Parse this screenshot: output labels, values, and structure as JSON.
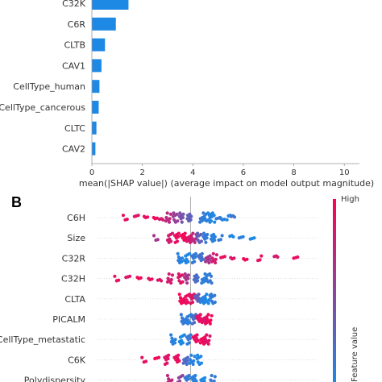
{
  "panel_b_label": "B",
  "chart_data": [
    {
      "type": "bar",
      "orientation": "horizontal",
      "categories": [
        "C32K",
        "C6R",
        "CLTB",
        "CAV1",
        "CellType_human",
        "CellType_cancerous",
        "CLTC",
        "CAV2"
      ],
      "values": [
        1.45,
        0.95,
        0.52,
        0.38,
        0.3,
        0.27,
        0.18,
        0.14
      ],
      "xlabel": "mean(|SHAP value|) (average impact on model output magnitude)",
      "xlim": [
        0,
        10.6
      ],
      "xticks": [
        "0",
        "2",
        "4",
        "6",
        "8",
        "10"
      ],
      "xtick_values": [
        0,
        2,
        4,
        6,
        8,
        10
      ],
      "bar_color": "#1e88e5",
      "grid": false
    },
    {
      "type": "scatter",
      "subtype": "beeswarm",
      "features": [
        "C6H",
        "Size",
        "C32R",
        "C32H",
        "CLTA",
        "PICALM",
        "CellType_metastatic",
        "C6K",
        "Polydispersity"
      ],
      "colorbar": {
        "high_label": "High",
        "title": "Feature value",
        "low_color": "#1e88e5",
        "high_color": "#ff0052"
      },
      "points": [
        {
          "feature": "C6H",
          "values": [
            -3.8,
            -3.2,
            -2.6,
            -2.1,
            -1.7,
            -1.3,
            -0.9,
            -0.5,
            -0.1,
            0.7,
            1.0,
            1.3,
            1.6,
            1.9,
            2.2,
            2.5
          ],
          "colors": [
            0.9,
            0.85,
            0.9,
            0.95,
            0.8,
            0.7,
            0.55,
            0.4,
            0.3,
            0.1,
            0.05,
            0.0,
            0.1,
            0.05,
            0.0,
            0.15
          ]
        },
        {
          "feature": "Size",
          "values": [
            -2.0,
            -1.2,
            -0.8,
            -0.4,
            -0.1,
            0.2,
            0.5,
            0.9,
            1.3,
            1.8,
            2.4,
            3.0,
            3.6
          ],
          "colors": [
            0.6,
            0.8,
            0.9,
            0.95,
            0.85,
            0.7,
            0.3,
            0.1,
            0.05,
            0.1,
            0.0,
            0.05,
            0.0
          ]
        },
        {
          "feature": "C32R",
          "values": [
            -0.6,
            -0.2,
            0.2,
            0.6,
            1.0,
            1.4,
            1.9,
            2.5,
            3.2,
            4.1,
            5.0,
            6.2
          ],
          "colors": [
            0.05,
            0.0,
            0.1,
            0.15,
            0.6,
            0.8,
            0.9,
            0.85,
            0.95,
            0.9,
            0.8,
            0.9
          ]
        },
        {
          "feature": "C32H",
          "values": [
            -4.3,
            -3.7,
            -3.0,
            -2.4,
            -1.8,
            -1.2,
            -0.6,
            -0.2,
            0.3,
            0.8,
            1.1
          ],
          "colors": [
            0.9,
            0.85,
            0.95,
            0.9,
            0.85,
            0.8,
            0.85,
            0.6,
            0.2,
            0.05,
            0.1
          ]
        },
        {
          "feature": "CLTA",
          "values": [
            -0.5,
            -0.2,
            0.1,
            0.4,
            0.7,
            1.0,
            1.3
          ],
          "colors": [
            0.95,
            0.9,
            0.85,
            0.3,
            0.05,
            0.0,
            0.1
          ]
        },
        {
          "feature": "PICALM",
          "values": [
            -0.4,
            -0.1,
            0.2,
            0.5,
            0.8,
            1.1
          ],
          "colors": [
            0.1,
            0.05,
            0.2,
            0.9,
            0.85,
            0.95
          ]
        },
        {
          "feature": "CellType_metastatic",
          "values": [
            -1.0,
            -0.5,
            -0.1,
            0.3,
            0.7,
            1.0
          ],
          "colors": [
            0.05,
            0.0,
            0.1,
            0.9,
            0.95,
            0.85
          ]
        },
        {
          "feature": "C6K",
          "values": [
            -2.7,
            -2.0,
            -1.4,
            -0.8,
            -0.3,
            0.1,
            0.5
          ],
          "colors": [
            0.9,
            0.95,
            0.85,
            0.9,
            0.2,
            0.05,
            0.0
          ]
        },
        {
          "feature": "Polydispersity",
          "values": [
            -1.2,
            -0.6,
            -0.2,
            0.2,
            0.7,
            1.3
          ],
          "colors": [
            0.7,
            0.5,
            0.1,
            0.05,
            0.0,
            0.1
          ]
        }
      ],
      "xlim": [
        -5.5,
        7.5
      ],
      "grid": false
    }
  ]
}
